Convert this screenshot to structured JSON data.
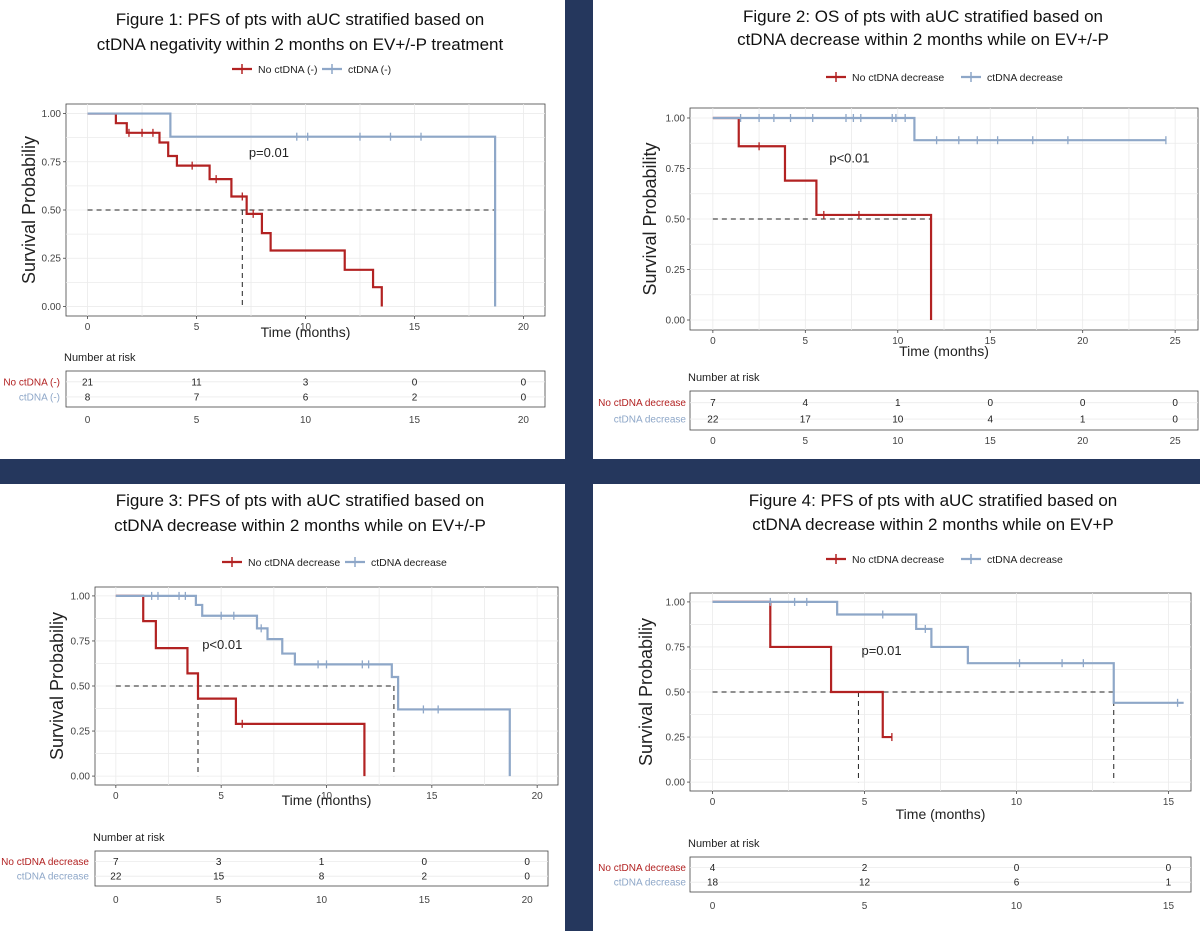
{
  "colors": {
    "red": "#b22222",
    "blue": "#8ea7c8",
    "divider": "#25375d"
  },
  "figures": [
    {
      "id": "p1",
      "title_lines": [
        "Figure 1: PFS of pts with aUC stratified based on",
        "ctDNA negativity within 2 months on EV+/-P treatment"
      ],
      "legend": [
        "No ctDNA (-)",
        "ctDNA (-)"
      ],
      "ylabel": "Survival Probabiliy",
      "xlabel": "Time (months)",
      "pvalue": "p=0.01",
      "risk_title": "Number at risk",
      "risk_strata": [
        "No ctDNA (-)",
        "ctDNA (-)"
      ],
      "risk_ticks": [
        "0",
        "5",
        "10",
        "15",
        "20"
      ],
      "risk_values": [
        [
          "21",
          "11",
          "3",
          "0",
          "0"
        ],
        [
          "8",
          "7",
          "6",
          "2",
          "0"
        ]
      ]
    },
    {
      "id": "p2",
      "title_lines": [
        "Figure 2: OS of pts with aUC stratified based on",
        "ctDNA decrease within 2 months while on EV+/-P"
      ],
      "legend": [
        "No ctDNA decrease",
        "ctDNA decrease"
      ],
      "ylabel": "Survival Probability",
      "xlabel": "Time (months)",
      "pvalue": "p<0.01",
      "risk_title": "Number at risk",
      "risk_strata": [
        "No ctDNA decrease",
        "ctDNA decrease"
      ],
      "risk_ticks": [
        "0",
        "5",
        "10",
        "15",
        "20",
        "25"
      ],
      "risk_values": [
        [
          "7",
          "4",
          "1",
          "0",
          "0",
          "0"
        ],
        [
          "22",
          "17",
          "10",
          "4",
          "1",
          "0"
        ]
      ]
    },
    {
      "id": "p3",
      "title_lines": [
        "Figure 3: PFS of pts with aUC stratified based on",
        "ctDNA decrease within 2 months while on EV+/-P"
      ],
      "legend": [
        "No ctDNA decrease",
        "ctDNA decrease"
      ],
      "ylabel": "Survival Probabiliy",
      "xlabel": "Time (months)",
      "pvalue": "p<0.01",
      "risk_title": "Number at risk",
      "risk_strata": [
        "No ctDNA decrease",
        "ctDNA decrease"
      ],
      "risk_ticks": [
        "0",
        "5",
        "10",
        "15",
        "20"
      ],
      "risk_values": [
        [
          "7",
          "3",
          "1",
          "0",
          "0"
        ],
        [
          "22",
          "15",
          "8",
          "2",
          "0"
        ]
      ]
    },
    {
      "id": "p4",
      "title_lines": [
        "Figure 4: PFS of pts with aUC stratified based on",
        "ctDNA decrease within 2 months while on EV+P"
      ],
      "legend": [
        "No ctDNA decrease",
        "ctDNA decrease"
      ],
      "ylabel": "Survival Probabiliy",
      "xlabel": "Time (months)",
      "pvalue": "p=0.01",
      "risk_title": "Number at risk",
      "risk_strata": [
        "No ctDNA decrease",
        "ctDNA decrease"
      ],
      "risk_ticks": [
        "0",
        "5",
        "10",
        "15"
      ],
      "risk_values": [
        [
          "4",
          "2",
          "0",
          "0"
        ],
        [
          "18",
          "12",
          "6",
          "1"
        ]
      ]
    }
  ],
  "chart_data": [
    {
      "type": "line",
      "title": "Figure 1: PFS of pts with aUC stratified based on ctDNA negativity within 2 months on EV+/-P treatment",
      "xlabel": "Time (months)",
      "ylabel": "Survival Probabiliy",
      "xlim": [
        0,
        20
      ],
      "ylim": [
        0,
        1
      ],
      "xticks": [
        0,
        5,
        10,
        15,
        20
      ],
      "yticks": [
        "0.00",
        "0.25",
        "0.50",
        "0.75",
        "1.00"
      ],
      "grid": true,
      "legend_position": "top",
      "median_line": 0.5,
      "medians": [
        7.1,
        18.7
      ],
      "series": [
        {
          "name": "No ctDNA (-)",
          "color": "red",
          "steps": [
            [
              0,
              1.0
            ],
            [
              1.3,
              0.95
            ],
            [
              1.8,
              0.9
            ],
            [
              3.3,
              0.85
            ],
            [
              3.7,
              0.78
            ],
            [
              4.1,
              0.73
            ],
            [
              5.6,
              0.66
            ],
            [
              6.6,
              0.57
            ],
            [
              7.3,
              0.48
            ],
            [
              8.0,
              0.38
            ],
            [
              8.4,
              0.29
            ],
            [
              11.8,
              0.19
            ],
            [
              13.1,
              0.1
            ],
            [
              13.5,
              0.0
            ]
          ],
          "censors": [
            [
              1.9,
              0.9
            ],
            [
              2.5,
              0.9
            ],
            [
              3.0,
              0.9
            ],
            [
              4.8,
              0.73
            ],
            [
              5.9,
              0.66
            ],
            [
              7.1,
              0.57
            ],
            [
              7.6,
              0.48
            ]
          ]
        },
        {
          "name": "ctDNA (-)",
          "color": "blue",
          "steps": [
            [
              0,
              1.0
            ],
            [
              3.8,
              0.88
            ],
            [
              18.7,
              0.0
            ]
          ],
          "censors": [
            [
              9.6,
              0.88
            ],
            [
              10.1,
              0.88
            ],
            [
              12.5,
              0.88
            ],
            [
              13.9,
              0.88
            ],
            [
              15.3,
              0.88
            ]
          ]
        }
      ]
    },
    {
      "type": "line",
      "title": "Figure 2: OS of pts with aUC stratified based on ctDNA decrease within 2 months while on EV+/-P",
      "xlabel": "Time (months)",
      "ylabel": "Survival Probability",
      "xlim": [
        0,
        25
      ],
      "ylim": [
        0,
        1
      ],
      "xticks": [
        0,
        5,
        10,
        15,
        20,
        25
      ],
      "yticks": [
        "0.00",
        "0.25",
        "0.50",
        "0.75",
        "1.00"
      ],
      "grid": true,
      "legend_position": "top",
      "median_line": 0.5,
      "medians": [
        11.8
      ],
      "series": [
        {
          "name": "No ctDNA decrease",
          "color": "red",
          "steps": [
            [
              0,
              1.0
            ],
            [
              1.4,
              0.86
            ],
            [
              3.9,
              0.69
            ],
            [
              5.6,
              0.52
            ],
            [
              11.8,
              0.0
            ]
          ],
          "censors": [
            [
              2.5,
              0.86
            ],
            [
              6.0,
              0.52
            ],
            [
              7.9,
              0.52
            ]
          ]
        },
        {
          "name": "ctDNA decrease",
          "color": "blue",
          "steps": [
            [
              0,
              1.0
            ],
            [
              10.9,
              0.89
            ]
          ],
          "end": 24.5,
          "censors": [
            [
              1.5,
              1.0
            ],
            [
              2.5,
              1.0
            ],
            [
              3.3,
              1.0
            ],
            [
              4.2,
              1.0
            ],
            [
              5.4,
              1.0
            ],
            [
              7.2,
              1.0
            ],
            [
              7.6,
              1.0
            ],
            [
              8.0,
              1.0
            ],
            [
              9.7,
              1.0
            ],
            [
              9.9,
              1.0
            ],
            [
              10.4,
              1.0
            ],
            [
              12.1,
              0.89
            ],
            [
              13.3,
              0.89
            ],
            [
              14.3,
              0.89
            ],
            [
              15.4,
              0.89
            ],
            [
              17.3,
              0.89
            ],
            [
              19.2,
              0.89
            ],
            [
              24.5,
              0.89
            ]
          ]
        }
      ]
    },
    {
      "type": "line",
      "title": "Figure 3: PFS of pts with aUC stratified based on ctDNA decrease within 2 months while on EV+/-P",
      "xlabel": "Time (months)",
      "ylabel": "Survival Probabiliy",
      "xlim": [
        0,
        20
      ],
      "ylim": [
        0,
        1
      ],
      "xticks": [
        0,
        5,
        10,
        15,
        20
      ],
      "yticks": [
        "0.00",
        "0.25",
        "0.50",
        "0.75",
        "1.00"
      ],
      "grid": true,
      "legend_position": "top",
      "median_line": 0.5,
      "medians": [
        3.9,
        13.2
      ],
      "series": [
        {
          "name": "No ctDNA decrease",
          "color": "red",
          "steps": [
            [
              0,
              1.0
            ],
            [
              1.3,
              0.86
            ],
            [
              1.9,
              0.71
            ],
            [
              3.4,
              0.57
            ],
            [
              3.9,
              0.43
            ],
            [
              5.7,
              0.29
            ],
            [
              11.8,
              0.0
            ]
          ],
          "censors": [
            [
              6.0,
              0.29
            ]
          ]
        },
        {
          "name": "ctDNA decrease",
          "color": "blue",
          "steps": [
            [
              0,
              1.0
            ],
            [
              3.8,
              0.95
            ],
            [
              4.1,
              0.89
            ],
            [
              6.7,
              0.82
            ],
            [
              7.2,
              0.76
            ],
            [
              7.9,
              0.68
            ],
            [
              8.5,
              0.62
            ],
            [
              13.1,
              0.55
            ],
            [
              13.4,
              0.37
            ],
            [
              18.7,
              0.0
            ]
          ],
          "censors": [
            [
              1.7,
              1.0
            ],
            [
              2.0,
              1.0
            ],
            [
              3.0,
              1.0
            ],
            [
              3.3,
              1.0
            ],
            [
              5.0,
              0.89
            ],
            [
              5.6,
              0.89
            ],
            [
              6.9,
              0.82
            ],
            [
              9.6,
              0.62
            ],
            [
              10.0,
              0.62
            ],
            [
              11.7,
              0.62
            ],
            [
              12.0,
              0.62
            ],
            [
              14.6,
              0.37
            ],
            [
              15.3,
              0.37
            ]
          ]
        }
      ]
    },
    {
      "type": "line",
      "title": "Figure 4: PFS of pts with aUC stratified based on ctDNA decrease within 2 months while on EV+P",
      "xlabel": "Time (months)",
      "ylabel": "Survival Probabiliy",
      "xlim": [
        0,
        15
      ],
      "ylim": [
        0,
        1
      ],
      "xticks": [
        0,
        5,
        10,
        15
      ],
      "yticks": [
        "0.00",
        "0.25",
        "0.50",
        "0.75",
        "1.00"
      ],
      "grid": true,
      "legend_position": "top",
      "median_line": 0.5,
      "medians": [
        4.8,
        13.2
      ],
      "series": [
        {
          "name": "No ctDNA decrease",
          "color": "red",
          "steps": [
            [
              0,
              1.0
            ],
            [
              1.9,
              0.75
            ],
            [
              3.9,
              0.5
            ],
            [
              5.6,
              0.25
            ]
          ],
          "end": 5.9,
          "censors": [
            [
              5.9,
              0.25
            ]
          ]
        },
        {
          "name": "ctDNA decrease",
          "color": "blue",
          "steps": [
            [
              0,
              1.0
            ],
            [
              4.1,
              0.93
            ],
            [
              6.7,
              0.85
            ],
            [
              7.2,
              0.75
            ],
            [
              8.4,
              0.66
            ],
            [
              13.2,
              0.44
            ]
          ],
          "end": 15.5,
          "censors": [
            [
              1.9,
              1.0
            ],
            [
              2.7,
              1.0
            ],
            [
              3.1,
              1.0
            ],
            [
              5.6,
              0.93
            ],
            [
              7.0,
              0.85
            ],
            [
              10.1,
              0.66
            ],
            [
              11.5,
              0.66
            ],
            [
              12.2,
              0.66
            ],
            [
              15.3,
              0.44
            ]
          ]
        }
      ]
    }
  ]
}
